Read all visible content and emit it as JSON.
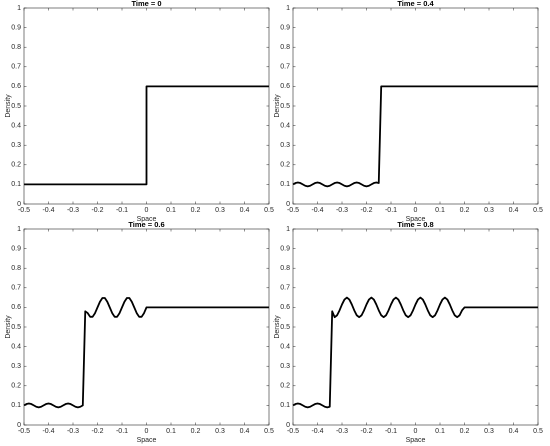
{
  "chart_data": [
    {
      "type": "line",
      "title": "Time = 0",
      "xlabel": "Space",
      "ylabel": "Density",
      "color": "#000000",
      "xlim": [
        -0.5,
        0.5
      ],
      "ylim": [
        0,
        1
      ],
      "xticks": [
        -0.5,
        -0.4,
        -0.3,
        -0.2,
        -0.1,
        0,
        0.1,
        0.2,
        0.3,
        0.4,
        0.5
      ],
      "yticks": [
        0,
        0.1,
        0.2,
        0.3,
        0.4,
        0.5,
        0.6,
        0.7,
        0.8,
        0.9,
        1
      ],
      "x": [
        -0.5,
        0,
        0,
        0.5
      ],
      "values": [
        0.1,
        0.1,
        0.6,
        0.6
      ]
    },
    {
      "type": "line",
      "title": "Time = 0.4",
      "xlabel": "Space",
      "ylabel": "Density",
      "color": "#000000",
      "xlim": [
        -0.5,
        0.5
      ],
      "ylim": [
        0,
        1
      ],
      "xticks": [
        -0.5,
        -0.4,
        -0.3,
        -0.2,
        -0.1,
        0,
        0.1,
        0.2,
        0.3,
        0.4,
        0.5
      ],
      "yticks": [
        0,
        0.1,
        0.2,
        0.3,
        0.4,
        0.5,
        0.6,
        0.7,
        0.8,
        0.9,
        1
      ],
      "x": [
        -0.5,
        -0.49,
        -0.48,
        -0.47,
        -0.46,
        -0.45,
        -0.44,
        -0.43,
        -0.42,
        -0.41,
        -0.4,
        -0.39,
        -0.38,
        -0.37,
        -0.36,
        -0.35,
        -0.34,
        -0.33,
        -0.32,
        -0.31,
        -0.3,
        -0.29,
        -0.28,
        -0.27,
        -0.26,
        -0.25,
        -0.24,
        -0.23,
        -0.22,
        -0.21,
        -0.2,
        -0.19,
        -0.18,
        -0.17,
        -0.16,
        -0.15,
        -0.14,
        0.5
      ],
      "values": [
        0.1,
        0.107,
        0.11,
        0.107,
        0.1,
        0.093,
        0.09,
        0.093,
        0.1,
        0.107,
        0.11,
        0.107,
        0.1,
        0.093,
        0.09,
        0.093,
        0.1,
        0.107,
        0.11,
        0.107,
        0.1,
        0.093,
        0.09,
        0.093,
        0.1,
        0.107,
        0.11,
        0.107,
        0.1,
        0.093,
        0.09,
        0.093,
        0.1,
        0.107,
        0.11,
        0.107,
        0.6,
        0.6
      ]
    },
    {
      "type": "line",
      "title": "Time = 0.6",
      "xlabel": "Space",
      "ylabel": "Density",
      "color": "#000000",
      "xlim": [
        -0.5,
        0.5
      ],
      "ylim": [
        0,
        1
      ],
      "xticks": [
        -0.5,
        -0.4,
        -0.3,
        -0.2,
        -0.1,
        0,
        0.1,
        0.2,
        0.3,
        0.4,
        0.5
      ],
      "yticks": [
        0,
        0.1,
        0.2,
        0.3,
        0.4,
        0.5,
        0.6,
        0.7,
        0.8,
        0.9,
        1
      ],
      "x": [
        -0.5,
        -0.49,
        -0.48,
        -0.47,
        -0.46,
        -0.45,
        -0.44,
        -0.43,
        -0.42,
        -0.41,
        -0.4,
        -0.39,
        -0.38,
        -0.37,
        -0.36,
        -0.35,
        -0.34,
        -0.33,
        -0.32,
        -0.31,
        -0.3,
        -0.29,
        -0.28,
        -0.27,
        -0.26,
        -0.25,
        -0.24,
        -0.23,
        -0.22,
        -0.21,
        -0.2,
        -0.19,
        -0.18,
        -0.17,
        -0.16,
        -0.15,
        -0.14,
        -0.13,
        -0.12,
        -0.11,
        -0.1,
        -0.09,
        -0.08,
        -0.07,
        -0.06,
        -0.05,
        -0.04,
        -0.03,
        -0.02,
        -0.01,
        0,
        0.5
      ],
      "values": [
        0.1,
        0.107,
        0.11,
        0.107,
        0.1,
        0.093,
        0.09,
        0.093,
        0.1,
        0.107,
        0.11,
        0.107,
        0.1,
        0.093,
        0.09,
        0.093,
        0.1,
        0.107,
        0.11,
        0.107,
        0.1,
        0.093,
        0.09,
        0.093,
        0.1,
        0.58,
        0.571,
        0.552,
        0.552,
        0.571,
        0.6,
        0.629,
        0.648,
        0.648,
        0.629,
        0.6,
        0.571,
        0.552,
        0.552,
        0.571,
        0.6,
        0.629,
        0.648,
        0.648,
        0.629,
        0.6,
        0.571,
        0.552,
        0.552,
        0.571,
        0.6,
        0.6
      ]
    },
    {
      "type": "line",
      "title": "Time = 0.8",
      "xlabel": "Space",
      "ylabel": "Density",
      "color": "#000000",
      "xlim": [
        -0.5,
        0.5
      ],
      "ylim": [
        0,
        1
      ],
      "xticks": [
        -0.5,
        -0.4,
        -0.3,
        -0.2,
        -0.1,
        0,
        0.1,
        0.2,
        0.3,
        0.4,
        0.5
      ],
      "yticks": [
        0,
        0.1,
        0.2,
        0.3,
        0.4,
        0.5,
        0.6,
        0.7,
        0.8,
        0.9,
        1
      ],
      "x": [
        -0.5,
        -0.49,
        -0.48,
        -0.47,
        -0.46,
        -0.45,
        -0.44,
        -0.43,
        -0.42,
        -0.41,
        -0.4,
        -0.39,
        -0.38,
        -0.37,
        -0.36,
        -0.35,
        -0.34,
        -0.33,
        -0.32,
        -0.31,
        -0.3,
        -0.29,
        -0.28,
        -0.27,
        -0.26,
        -0.25,
        -0.24,
        -0.23,
        -0.22,
        -0.21,
        -0.2,
        -0.19,
        -0.18,
        -0.17,
        -0.16,
        -0.15,
        -0.14,
        -0.13,
        -0.12,
        -0.11,
        -0.1,
        -0.09,
        -0.08,
        -0.07,
        -0.06,
        -0.05,
        -0.04,
        -0.03,
        -0.02,
        -0.01,
        0,
        0.01,
        0.02,
        0.03,
        0.04,
        0.05,
        0.06,
        0.07,
        0.08,
        0.09,
        0.1,
        0.11,
        0.12,
        0.13,
        0.14,
        0.15,
        0.16,
        0.17,
        0.18,
        0.19,
        0.2,
        0.5
      ],
      "values": [
        0.1,
        0.107,
        0.11,
        0.107,
        0.1,
        0.093,
        0.09,
        0.093,
        0.1,
        0.107,
        0.11,
        0.107,
        0.1,
        0.093,
        0.09,
        0.093,
        0.58,
        0.55,
        0.56,
        0.585,
        0.615,
        0.64,
        0.65,
        0.64,
        0.615,
        0.585,
        0.56,
        0.55,
        0.56,
        0.585,
        0.615,
        0.64,
        0.65,
        0.64,
        0.615,
        0.585,
        0.56,
        0.55,
        0.56,
        0.585,
        0.615,
        0.64,
        0.65,
        0.64,
        0.615,
        0.585,
        0.56,
        0.55,
        0.56,
        0.585,
        0.615,
        0.64,
        0.65,
        0.64,
        0.615,
        0.585,
        0.56,
        0.55,
        0.56,
        0.585,
        0.615,
        0.64,
        0.65,
        0.64,
        0.615,
        0.585,
        0.56,
        0.55,
        0.56,
        0.585,
        0.6,
        0.6
      ]
    }
  ]
}
